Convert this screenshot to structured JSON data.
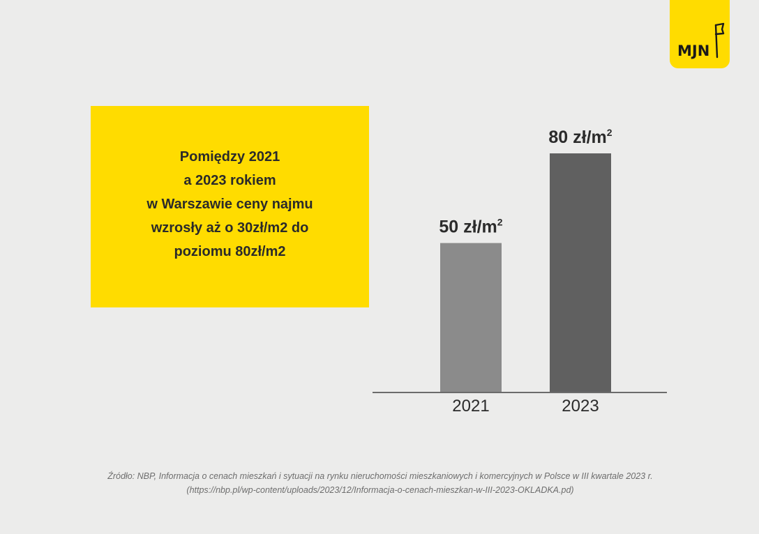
{
  "logo": {
    "text": "MJN"
  },
  "headline": {
    "lines": [
      "Pomiędzy 2021",
      "a 2023 rokiem",
      "w Warszawie ceny najmu",
      "wzrosły aż o 30zł/m2 do",
      "poziomu 80zł/m2"
    ]
  },
  "chart_data": {
    "type": "bar",
    "categories": [
      "2021",
      "2023"
    ],
    "values": [
      50,
      80
    ],
    "value_labels": [
      "50 zł/m",
      "80 zł/m"
    ],
    "value_label_superscript": "2",
    "title": "",
    "xlabel": "",
    "ylabel": "",
    "ylim": [
      0,
      80
    ],
    "grid": false,
    "colors": [
      "#8b8b8b",
      "#606060"
    ],
    "axis_color": "#6b6b6b"
  },
  "source": {
    "line1": "Źródło: NBP, Informacja o cenach mieszkań i sytuacji na rynku nieruchomości mieszkaniowych i komercyjnych w Polsce w III kwartale 2023 r.",
    "line2": "(https://nbp.pl/wp-content/uploads/2023/12/Informacja-o-cenach-mieszkan-w-III-2023-OKLADKA.pd)"
  }
}
